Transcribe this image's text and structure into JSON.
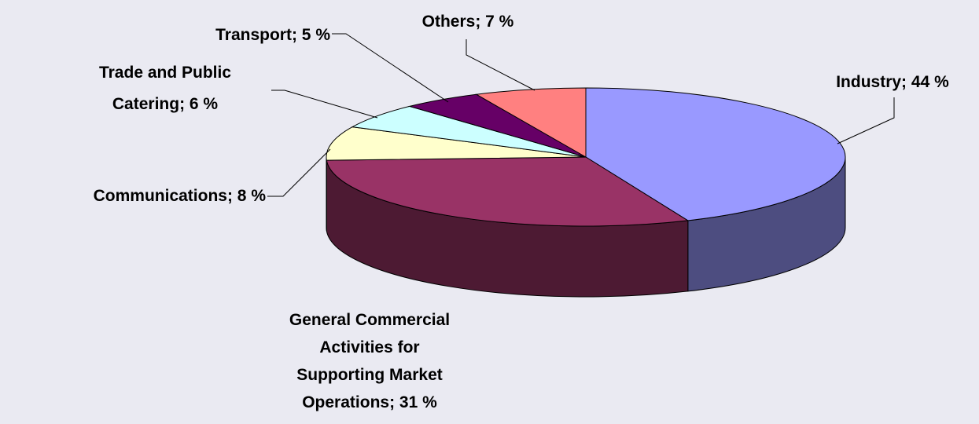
{
  "chart_data": {
    "type": "pie3d",
    "values": [
      44,
      31,
      8,
      6,
      5,
      7
    ],
    "value_labels": [
      "Industry; 44 %",
      "General Commercial Activities for Supporting Market Operations; 31 %",
      "Communications; 8 %",
      "Trade and Public Catering; 6 %",
      "Transport; 5 %",
      "Others; 7 %"
    ],
    "colors": [
      "#9999ff",
      "#993366",
      "#ffffcc",
      "#ccffff",
      "#660066",
      "#ff8080"
    ]
  }
}
